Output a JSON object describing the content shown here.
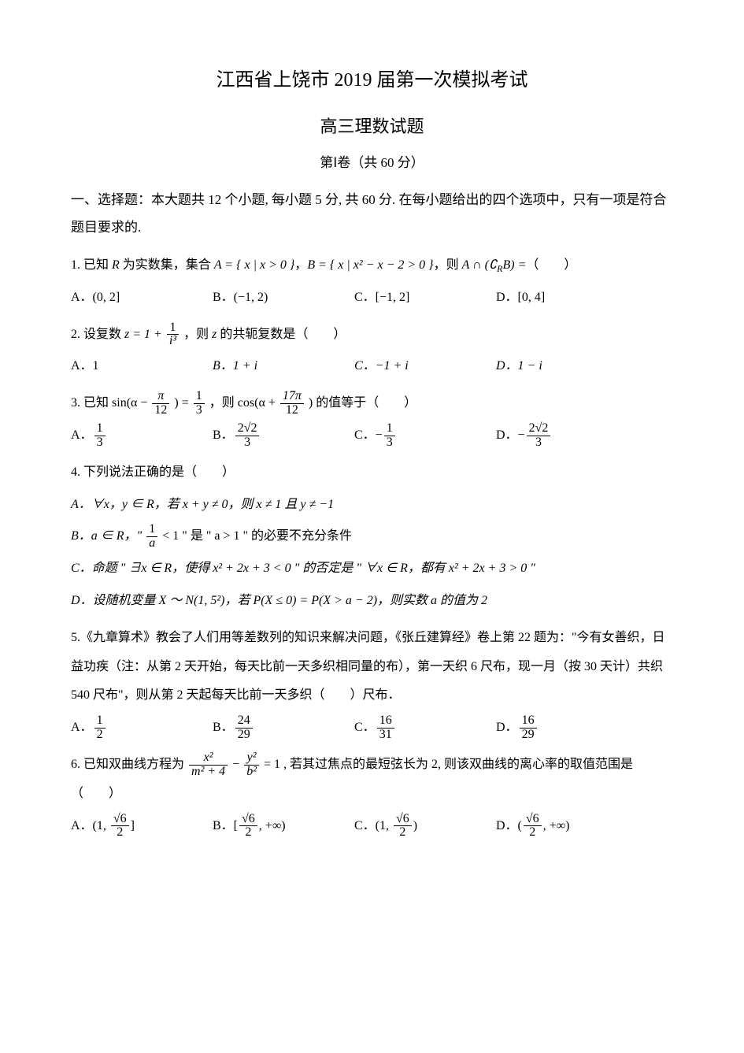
{
  "title": "江西省上饶市 2019 届第一次模拟考试",
  "subtitle": "高三理数试题",
  "section_label": "第Ⅰ卷（共 60 分）",
  "instructions": "一、选择题：本大题共 12 个小题, 每小题 5 分, 共 60 分. 在每小题给出的四个选项中，只有一项是符合题目要求的.",
  "q1": {
    "prefix": "1. 已知 ",
    "r": "R",
    "mid1": " 为实数集，集合 ",
    "setA": "A = { x | x > 0 }",
    "mid2": "，",
    "setB": "B = { x | x² − x − 2 > 0 }",
    "mid3": "，则 ",
    "expr": "A ∩ (∁",
    "exprR": "R",
    "expr2": "B) =",
    "tail": "（　　）",
    "A": "A．(0, 2]",
    "B": "B．(−1, 2)",
    "C": "C．[−1, 2]",
    "D": "D．[0, 4]"
  },
  "q2": {
    "prefix": "2. 设复数 ",
    "z": "z = 1 +",
    "frac_num": "1",
    "frac_den": "i³",
    "mid": "，则 ",
    "zvar": "z",
    "tail": " 的共轭复数是（　　）",
    "A": "A．1",
    "B": "B．1 + i",
    "C": "C．−1 + i",
    "D": "D．1 − i"
  },
  "q3": {
    "prefix": "3. 已知 ",
    "sin": "sin(α −",
    "f1_num": "π",
    "f1_den": "12",
    "close1": ") =",
    "f2_num": "1",
    "f2_den": "3",
    "mid": "，则 ",
    "cos": "cos(α +",
    "f3_num": "17π",
    "f3_den": "12",
    "close2": ")",
    "tail": " 的值等于（　　）",
    "A_label": "A．",
    "A_num": "1",
    "A_den": "3",
    "B_label": "B．",
    "B_num": "2√2",
    "B_den": "3",
    "C_label": "C．−",
    "C_num": "1",
    "C_den": "3",
    "D_label": "D．−",
    "D_num": "2√2",
    "D_den": "3"
  },
  "q4": {
    "stem": "4. 下列说法正确的是（　　）",
    "A": "A．∀x，y ∈ R，若 x + y ≠ 0，则 x ≠ 1 且 y ≠ −1",
    "B_pre": "B．a ∈ R，\" ",
    "B_num": "1",
    "B_den": "a",
    "B_mid": " < 1 \" 是 \" a > 1 \" 的必要不充分条件",
    "C": "C．命题 \" ∃x ∈ R，使得 x² + 2x + 3 < 0 \" 的否定是 \" ∀x ∈ R，都有 x² + 2x + 3 > 0 \"",
    "D": "D．设随机变量 X ～ N(1, 5²)，若 P(X ≤ 0) = P(X > a − 2)，则实数 a 的值为 2"
  },
  "q5": {
    "stem": "5.《九章算术》教会了人们用等差数列的知识来解决问题，《张丘建算经》卷上第 22 题为：\"今有女善织，日益功疾（注：从第 2 天开始，每天比前一天多织相同量的布），第一天织 6 尺布，现一月（按 30 天计）共织 540 尺布\"，则从第 2 天起每天比前一天多织（　　）尺布．",
    "A_label": "A．",
    "A_num": "1",
    "A_den": "2",
    "B_label": "B．",
    "B_num": "24",
    "B_den": "29",
    "C_label": "C．",
    "C_num": "16",
    "C_den": "31",
    "D_label": "D．",
    "D_num": "16",
    "D_den": "29"
  },
  "q6": {
    "prefix": "6. 已知双曲线方程为 ",
    "f1_num": "x²",
    "f1_den": "m² + 4",
    "minus": " − ",
    "f2_num": "y²",
    "f2_den": "b²",
    "eq": " = 1",
    "tail": " , 若其过焦点的最短弦长为 2, 则该双曲线的离心率的取值范围是（　　）",
    "A_label": "A．(1, ",
    "A_num": "√6",
    "A_den": "2",
    "A_close": "]",
    "B_label": "B．[",
    "B_num": "√6",
    "B_den": "2",
    "B_close": ", +∞)",
    "C_label": "C．(1, ",
    "C_num": "√6",
    "C_den": "2",
    "C_close": ")",
    "D_label": "D．(",
    "D_num": "√6",
    "D_den": "2",
    "D_close": ", +∞)"
  }
}
